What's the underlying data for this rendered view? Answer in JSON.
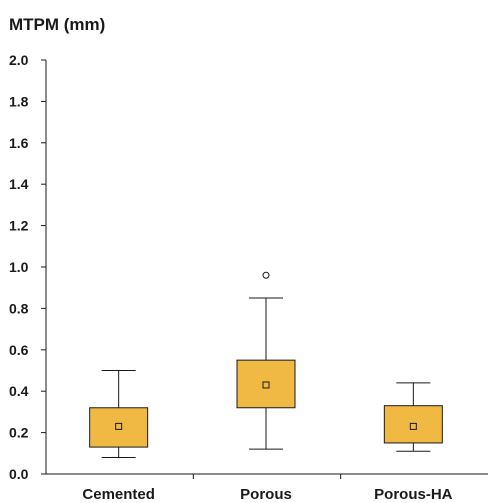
{
  "chart_data": {
    "type": "boxplot",
    "ylabel": "MTPM (mm)",
    "ylim": [
      0,
      2.0
    ],
    "yticks": [
      "0.0",
      "0.2",
      "0.4",
      "0.6",
      "0.8",
      "1.0",
      "1.2",
      "1.4",
      "1.6",
      "1.8",
      "2.0"
    ],
    "categories": [
      "Cemented",
      "Porous",
      "Porous-HA"
    ],
    "boxes": [
      {
        "category": "Cemented",
        "whisker_low": 0.08,
        "q1": 0.13,
        "mean": 0.23,
        "q3": 0.32,
        "whisker_high": 0.5,
        "outliers": []
      },
      {
        "category": "Porous",
        "whisker_low": 0.12,
        "q1": 0.32,
        "mean": 0.43,
        "q3": 0.55,
        "whisker_high": 0.85,
        "outliers": [
          0.96
        ]
      },
      {
        "category": "Porous-HA",
        "whisker_low": 0.11,
        "q1": 0.15,
        "mean": 0.23,
        "q3": 0.33,
        "whisker_high": 0.44,
        "outliers": []
      }
    ],
    "box_color": "#f0b944",
    "grid": false
  }
}
